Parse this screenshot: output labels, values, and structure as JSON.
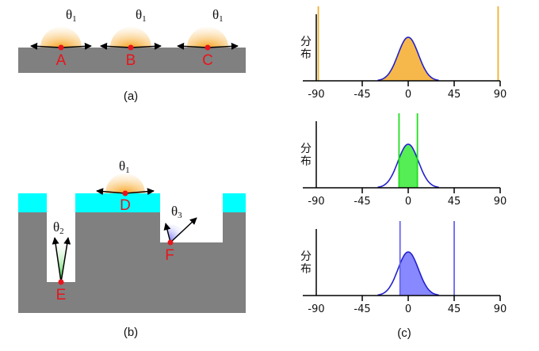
{
  "panel_a": {
    "caption": "(a)",
    "points": [
      {
        "label": "A",
        "angle": "θ",
        "angle_sub": "1"
      },
      {
        "label": "B",
        "angle": "θ",
        "angle_sub": "1"
      },
      {
        "label": "C",
        "angle": "θ",
        "angle_sub": "1"
      }
    ]
  },
  "panel_b": {
    "caption": "(b)",
    "points": [
      {
        "label": "D",
        "angle": "θ",
        "angle_sub": "1"
      },
      {
        "label": "E",
        "angle": "θ",
        "angle_sub": "2"
      },
      {
        "label": "F",
        "angle": "θ",
        "angle_sub": "3"
      }
    ]
  },
  "colors": {
    "substrate": "#808080",
    "mask": "#00ffff",
    "point": "#e8141b",
    "orange": "#f6b84a",
    "green": "#33ee33",
    "purple": "#7777ff",
    "curve": "#2222cc"
  },
  "panel_c": {
    "caption": "(c)"
  },
  "chart_data": [
    {
      "type": "area",
      "ylabel": "分布",
      "xticks": [
        -90,
        -45,
        0,
        45,
        90
      ],
      "xlim": [
        -90,
        90
      ],
      "distribution": "gaussian",
      "mean": 0,
      "sigma": 10,
      "limits": [
        -88,
        88
      ],
      "fill_color": "#f6b84a",
      "line_color": "#f0b030"
    },
    {
      "type": "area",
      "ylabel": "分布",
      "xticks": [
        -90,
        -45,
        0,
        45,
        90
      ],
      "xlim": [
        -90,
        90
      ],
      "distribution": "gaussian",
      "mean": 0,
      "sigma": 10,
      "limits": [
        -9,
        9
      ],
      "fill_color": "#55ee55",
      "line_color": "#22dd22"
    },
    {
      "type": "area",
      "ylabel": "分布",
      "xticks": [
        -90,
        -45,
        0,
        45,
        90
      ],
      "xlim": [
        -90,
        90
      ],
      "distribution": "gaussian",
      "mean": 0,
      "sigma": 10,
      "limits": [
        -8,
        45
      ],
      "fill_color": "#8888ff",
      "line_color": "#6666ee"
    }
  ]
}
